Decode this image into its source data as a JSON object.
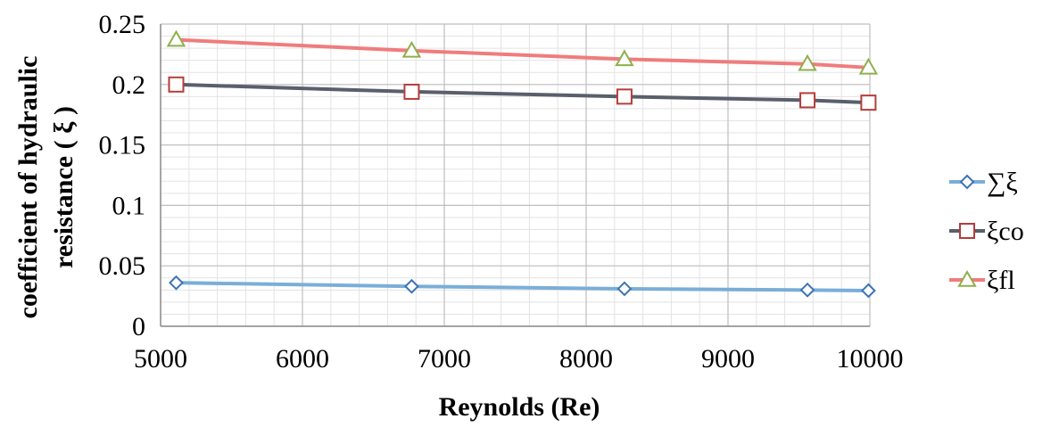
{
  "chart_data": {
    "type": "line",
    "title": "",
    "xlabel": "Reynolds (Re)",
    "ylabel_line1": "coefficient of hydraulic",
    "ylabel_line2": "resistance ( ξ )",
    "xlim": [
      5000,
      10000
    ],
    "ylim": [
      0,
      0.25
    ],
    "x_ticks": [
      5000,
      6000,
      7000,
      8000,
      9000,
      10000
    ],
    "x_tick_labels": [
      "5000",
      "6000",
      "7000",
      "8000",
      "9000",
      "10000"
    ],
    "y_ticks": [
      0,
      0.05,
      0.1,
      0.15,
      0.2,
      0.25
    ],
    "y_tick_labels": [
      "0",
      "0.05",
      "0.1",
      "0.15",
      "0.2",
      "0.25"
    ],
    "grid": true,
    "minor_grid": true,
    "legend_position": "right",
    "x": [
      5110,
      6770,
      8270,
      9560,
      9990
    ],
    "series": [
      {
        "name": "∑ξ",
        "marker": "diamond",
        "color": "#7aaed8",
        "marker_edge": "#3d74b3",
        "values": [
          0.036,
          0.033,
          0.031,
          0.03,
          0.0295
        ]
      },
      {
        "name": "ξco",
        "marker": "square",
        "color": "#595f6b",
        "marker_edge": "#b43d3a",
        "values": [
          0.2,
          0.194,
          0.19,
          0.187,
          0.185
        ]
      },
      {
        "name": "ξfl",
        "marker": "triangle",
        "color": "#f07c7c",
        "marker_edge": "#8eaf4c",
        "values": [
          0.237,
          0.228,
          0.221,
          0.217,
          0.214
        ]
      }
    ]
  }
}
